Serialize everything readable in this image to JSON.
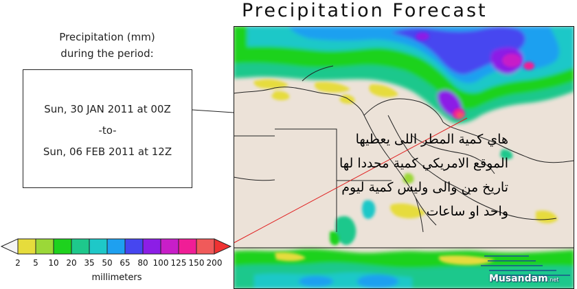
{
  "title": "Precipitation Forecast",
  "period": {
    "label_line1": "Precipitation (mm)",
    "label_line2": "during the period:",
    "start": "Sun, 30 JAN 2011 at 00Z",
    "separator": "-to-",
    "end": "Sun, 06 FEB 2011 at 12Z"
  },
  "annotation": {
    "line1": "هاي كمية المطر اللى يعطيها",
    "line2": "الموقع الامريكي كمية محددا لها",
    "line3": "تاريخ من والى وليس كمية ليوم",
    "line4": "واحد او ساعات"
  },
  "legend": {
    "units": "millimeters",
    "labels": [
      "2",
      "5",
      "10",
      "20",
      "35",
      "50",
      "65",
      "80",
      "100",
      "125",
      "150",
      "200"
    ],
    "colors": [
      "#e6dc3c",
      "#9bd838",
      "#1ed21e",
      "#1ec88c",
      "#1ec8c8",
      "#1ea0f0",
      "#4646f0",
      "#8c1ee6",
      "#c81ec8",
      "#f01e96",
      "#f05a5a",
      "#f03232"
    ]
  },
  "watermark": {
    "name": "Musandam",
    "suffix": ".net"
  },
  "colors": {
    "land": "#ece2d8",
    "border_lines": "#222222",
    "pointer_line": "#e02020"
  }
}
